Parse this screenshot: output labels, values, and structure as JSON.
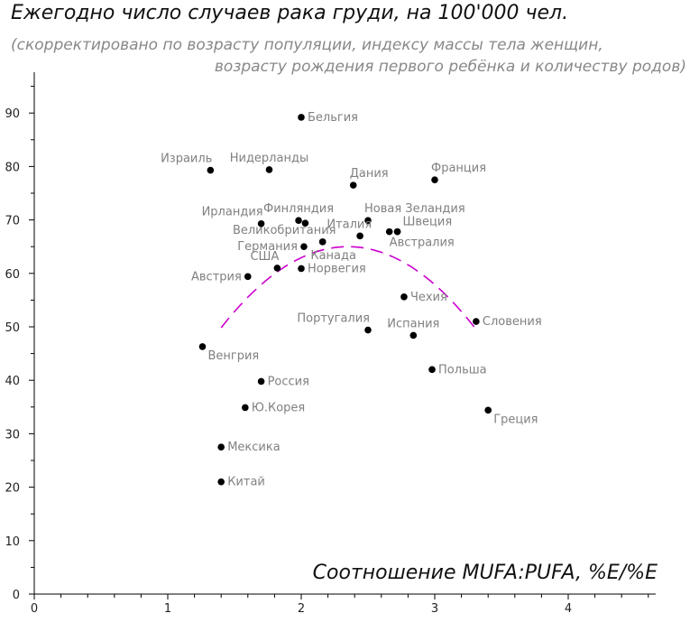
{
  "chart_data": {
    "type": "scatter",
    "title": "Ежегодно число случаев рака груди, на 100'000 чел.",
    "subtitle_lines": [
      "(скорректировано по возрасту популяции, индексу массы тела женщин,",
      "возрасту рождения первого ребёнка и количеству родов)"
    ],
    "xlabel": "Соотношение MUFA:PUFA, %E/%E",
    "ylabel": "",
    "xlim": [
      0,
      4.65
    ],
    "ylim": [
      0,
      97
    ],
    "x_ticks": [
      0,
      1,
      2,
      3,
      4
    ],
    "y_ticks": [
      0,
      10,
      20,
      30,
      40,
      50,
      60,
      70,
      80,
      90
    ],
    "grid": false,
    "points": [
      {
        "label": "Бельгия",
        "x": 2.0,
        "y": 89.2,
        "anchor": "right"
      },
      {
        "label": "Израиль",
        "x": 1.32,
        "y": 79.3,
        "anchor": "top-left"
      },
      {
        "label": "Нидерланды",
        "x": 1.76,
        "y": 79.4,
        "anchor": "top"
      },
      {
        "label": "Дания",
        "x": 2.39,
        "y": 76.5,
        "anchor": "top-right"
      },
      {
        "label": "Франция",
        "x": 3.0,
        "y": 77.5,
        "anchor": "top-right"
      },
      {
        "label": "Ирландия",
        "x": 1.7,
        "y": 69.3,
        "anchor": "top-left"
      },
      {
        "label": "Финляндия",
        "x": 1.98,
        "y": 69.9,
        "anchor": "top"
      },
      {
        "label": "",
        "x": 2.03,
        "y": 69.4,
        "anchor": "none"
      },
      {
        "label": "Новая Зеландия",
        "x": 2.5,
        "y": 69.9,
        "anchor": "top-right"
      },
      {
        "label": "Великобритания",
        "x": 2.16,
        "y": 65.9,
        "anchor": "top-left"
      },
      {
        "label": "Италия",
        "x": 2.44,
        "y": 67.0,
        "anchor": "top"
      },
      {
        "label": "Швеция",
        "x": 2.66,
        "y": 67.8,
        "anchor": "none"
      },
      {
        "label": "",
        "x": 2.72,
        "y": 67.8,
        "anchor": "right"
      },
      {
        "label": "Австралия",
        "x": 2.72,
        "y": 67.8,
        "anchor": "below-right"
      },
      {
        "label": "Германия",
        "x": 2.02,
        "y": 65.0,
        "anchor": "left"
      },
      {
        "label": "Канада",
        "x": 2.16,
        "y": 65.9,
        "anchor": "below-right"
      },
      {
        "label": "США",
        "x": 1.82,
        "y": 61.0,
        "anchor": "top-left"
      },
      {
        "label": "Норвегия",
        "x": 2.0,
        "y": 60.9,
        "anchor": "right"
      },
      {
        "label": "Австрия",
        "x": 1.6,
        "y": 59.4,
        "anchor": "left"
      },
      {
        "label": "Чехия",
        "x": 2.77,
        "y": 55.6,
        "anchor": "right"
      },
      {
        "label": "Португалия",
        "x": 2.5,
        "y": 49.4,
        "anchor": "top-left"
      },
      {
        "label": "Испания",
        "x": 2.84,
        "y": 48.4,
        "anchor": "top"
      },
      {
        "label": "Словения",
        "x": 3.31,
        "y": 51.0,
        "anchor": "right"
      },
      {
        "label": "Венгрия",
        "x": 1.26,
        "y": 46.3,
        "anchor": "below-right"
      },
      {
        "label": "Россия",
        "x": 1.7,
        "y": 39.8,
        "anchor": "right"
      },
      {
        "label": "Польша",
        "x": 2.98,
        "y": 42.0,
        "anchor": "right"
      },
      {
        "label": "Ю.Корея",
        "x": 1.58,
        "y": 34.9,
        "anchor": "right"
      },
      {
        "label": "Греция",
        "x": 3.4,
        "y": 34.4,
        "anchor": "below-right"
      },
      {
        "label": "Мексика",
        "x": 1.4,
        "y": 27.5,
        "anchor": "right"
      },
      {
        "label": "Китай",
        "x": 1.4,
        "y": 21.0,
        "anchor": "right"
      }
    ],
    "trend": {
      "style": "dashed",
      "color": "#cc00cc",
      "x_from": 1.4,
      "x_to": 3.3,
      "peak_x": 2.35,
      "peak_y": 65,
      "curvature": 16.8
    }
  }
}
